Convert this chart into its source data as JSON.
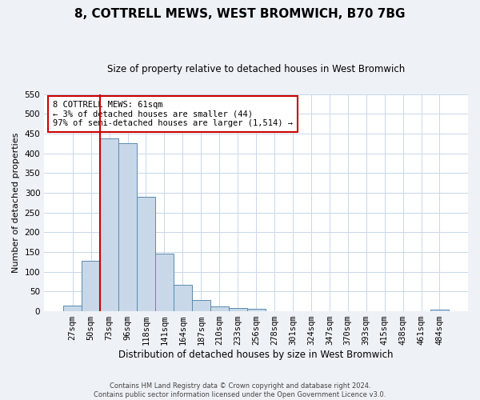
{
  "title": "8, COTTRELL MEWS, WEST BROMWICH, B70 7BG",
  "subtitle": "Size of property relative to detached houses in West Bromwich",
  "xlabel": "Distribution of detached houses by size in West Bromwich",
  "ylabel": "Number of detached properties",
  "bar_labels": [
    "27sqm",
    "50sqm",
    "73sqm",
    "96sqm",
    "118sqm",
    "141sqm",
    "164sqm",
    "187sqm",
    "210sqm",
    "233sqm",
    "256sqm",
    "278sqm",
    "301sqm",
    "324sqm",
    "347sqm",
    "370sqm",
    "393sqm",
    "415sqm",
    "438sqm",
    "461sqm",
    "484sqm"
  ],
  "bar_values": [
    15,
    128,
    438,
    425,
    290,
    146,
    68,
    29,
    13,
    8,
    6,
    0,
    1,
    0,
    0,
    0,
    0,
    0,
    0,
    0,
    5
  ],
  "bar_color": "#c8d8e8",
  "bar_edge_color": "#5a8ab0",
  "vline_color": "#cc0000",
  "ylim": [
    0,
    550
  ],
  "yticks": [
    0,
    50,
    100,
    150,
    200,
    250,
    300,
    350,
    400,
    450,
    500,
    550
  ],
  "annotation_text": "8 COTTRELL MEWS: 61sqm\n← 3% of detached houses are smaller (44)\n97% of semi-detached houses are larger (1,514) →",
  "annotation_box_color": "#ffffff",
  "annotation_box_edge": "#cc0000",
  "footer_line1": "Contains HM Land Registry data © Crown copyright and database right 2024.",
  "footer_line2": "Contains public sector information licensed under the Open Government Licence v3.0.",
  "bg_color": "#eef2f7",
  "plot_bg_color": "#ffffff",
  "grid_color": "#c8d8e8",
  "title_fontsize": 11,
  "subtitle_fontsize": 8.5,
  "ylabel_fontsize": 8,
  "xlabel_fontsize": 8.5,
  "tick_fontsize": 7.5,
  "annotation_fontsize": 7.5,
  "footer_fontsize": 6
}
